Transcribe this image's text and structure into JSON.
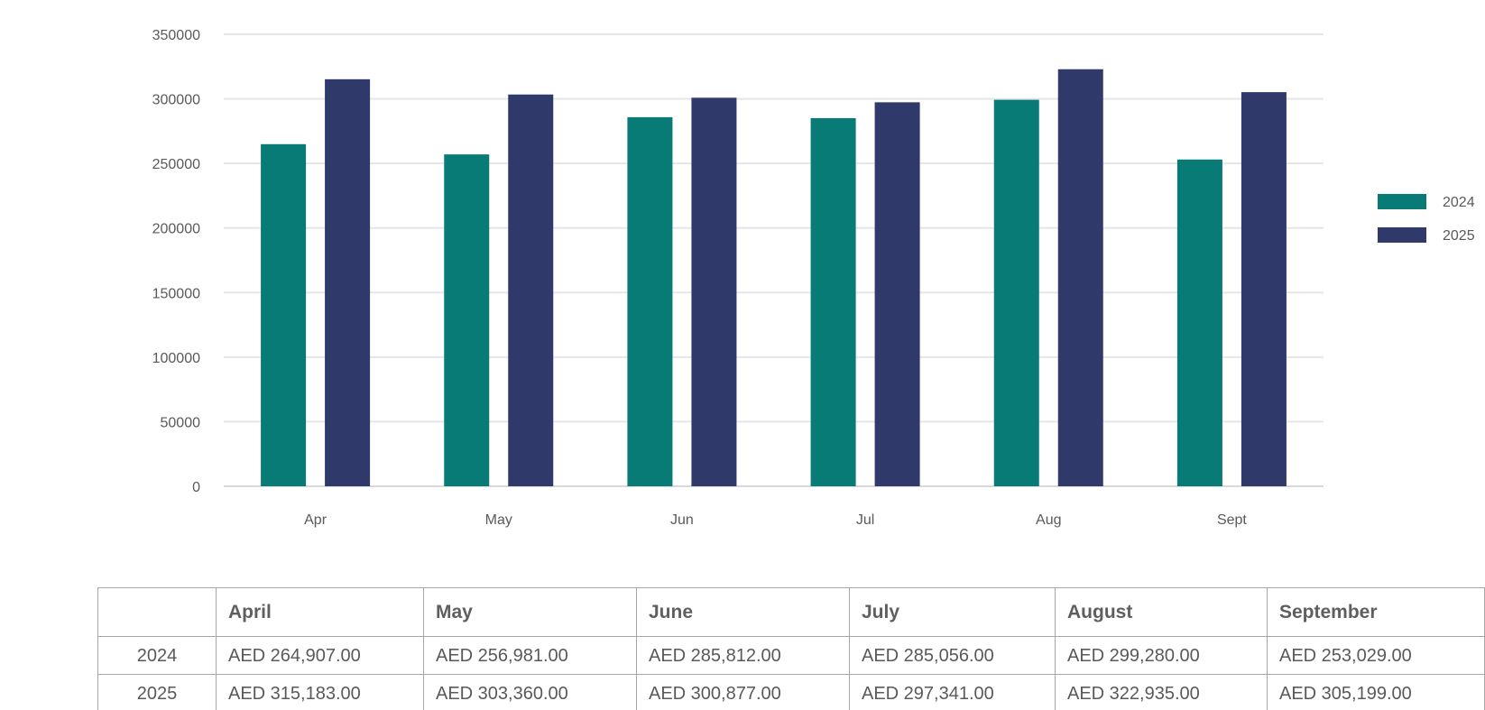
{
  "chart_data": {
    "type": "bar",
    "categories": [
      "Apr",
      "May",
      "Jun",
      "Jul",
      "Aug",
      "Sept"
    ],
    "series": [
      {
        "name": "2024",
        "color": "#087B77",
        "values": [
          264907,
          256981,
          285812,
          285056,
          299280,
          253029
        ]
      },
      {
        "name": "2025",
        "color": "#2F3A6B",
        "values": [
          315183,
          303360,
          300877,
          297341,
          322935,
          305199
        ]
      }
    ],
    "y_ticks": [
      "0",
      "50000",
      "100000",
      "150000",
      "200000",
      "250000",
      "300000",
      "350000"
    ],
    "ylim": [
      0,
      350000
    ],
    "grid": true,
    "legend_position": "right",
    "title": "",
    "xlabel": "",
    "ylabel": ""
  },
  "table": {
    "corner": "",
    "headers": [
      "April",
      "May",
      "June",
      "July",
      "August",
      "September"
    ],
    "rows": [
      {
        "label": "2024",
        "cells": [
          "AED 264,907.00",
          "AED 256,981.00",
          "AED 285,812.00",
          "AED 285,056.00",
          "AED 299,280.00",
          "AED 253,029.00"
        ]
      },
      {
        "label": "2025",
        "cells": [
          "AED 315,183.00",
          "AED 303,360.00",
          "AED 300,877.00",
          "AED 297,341.00",
          "AED 322,935.00",
          "AED 305,199.00"
        ]
      }
    ]
  }
}
